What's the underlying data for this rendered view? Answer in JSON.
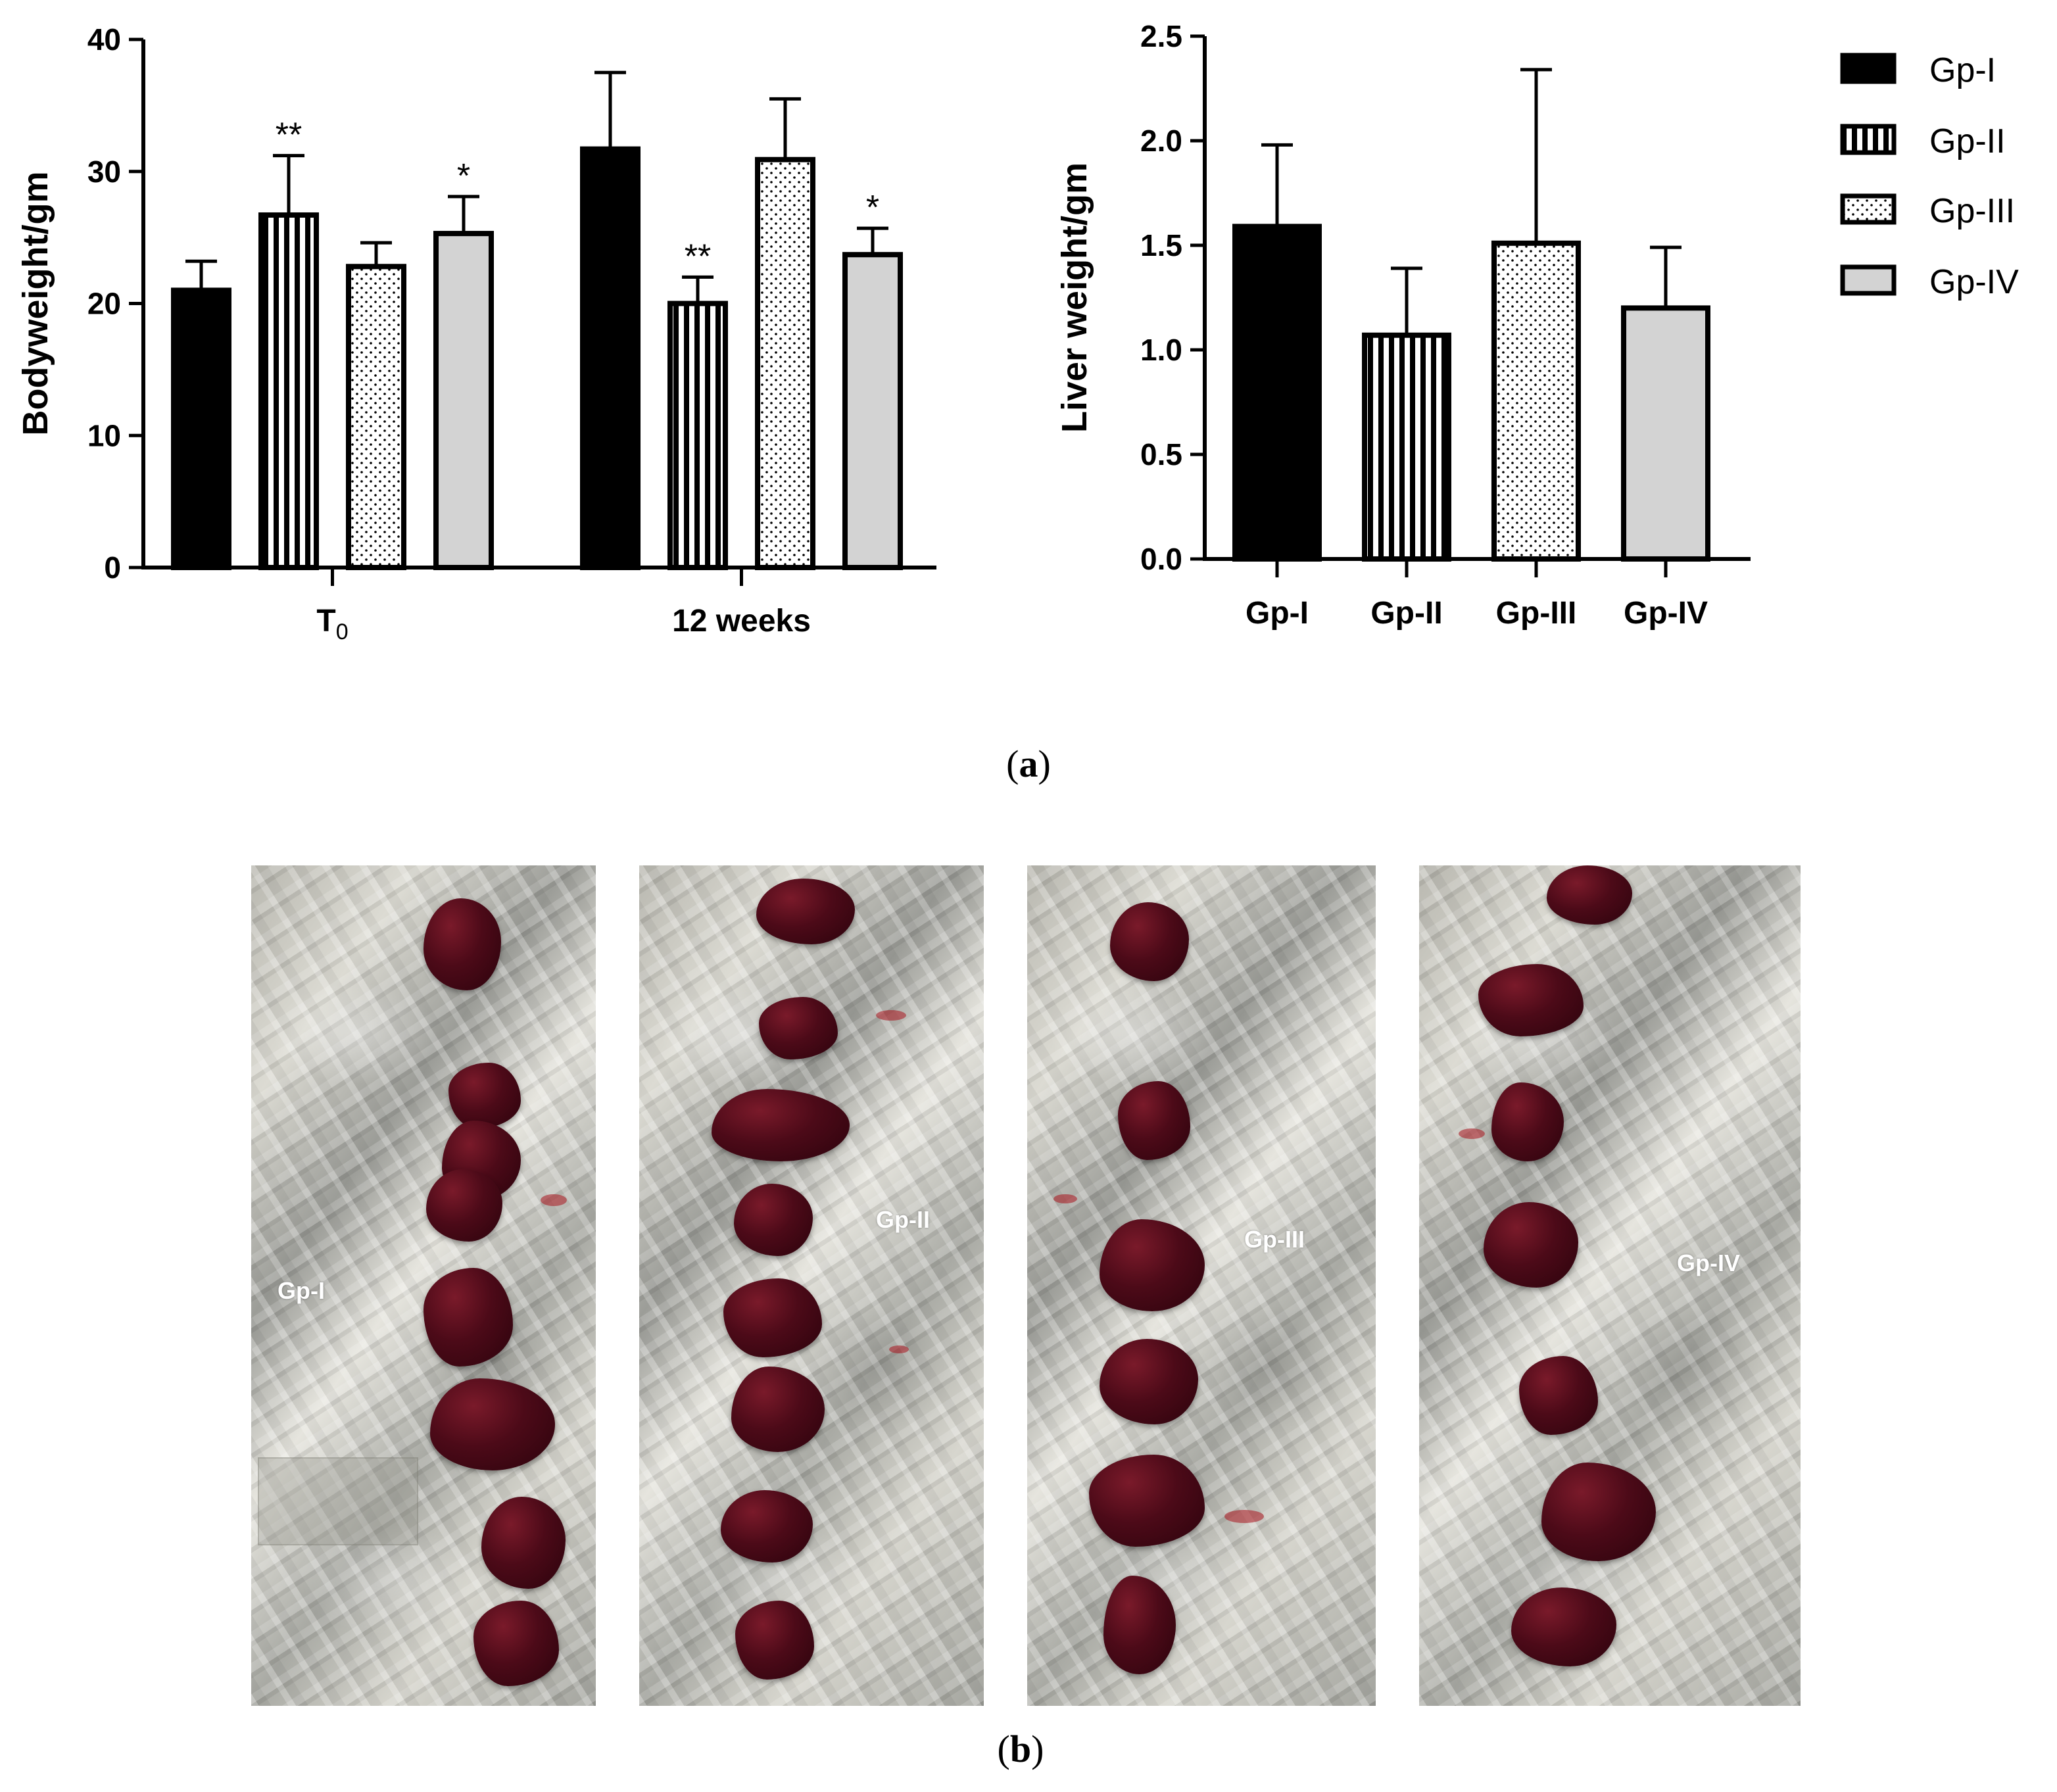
{
  "chart_data": [
    {
      "type": "bar",
      "ylabel": "Bodyweight/gm",
      "ylim": [
        0,
        40
      ],
      "yticks": [
        0,
        10,
        20,
        30,
        40
      ],
      "categories": [
        "T",
        "12 weeks"
      ],
      "category_subscripts": [
        "0",
        ""
      ],
      "series": [
        {
          "name": "Gp-I",
          "values": [
            21.0,
            31.7
          ],
          "errors": [
            2.2,
            5.8
          ],
          "marks": [
            "",
            ""
          ]
        },
        {
          "name": "Gp-II",
          "values": [
            26.7,
            20.0
          ],
          "errors": [
            4.5,
            2.0
          ],
          "marks": [
            "**",
            "**"
          ]
        },
        {
          "name": "Gp-III",
          "values": [
            22.8,
            30.9
          ],
          "errors": [
            1.8,
            4.6
          ],
          "marks": [
            "",
            ""
          ]
        },
        {
          "name": "Gp-IV",
          "values": [
            25.3,
            23.7
          ],
          "errors": [
            2.8,
            2.0
          ],
          "marks": [
            "*",
            "*"
          ]
        }
      ]
    },
    {
      "type": "bar",
      "ylabel": "Liver weight/gm",
      "ylim": [
        0,
        2.5
      ],
      "yticks": [
        "0.0",
        "0.5",
        "1.0",
        "1.5",
        "2.0",
        "2.5"
      ],
      "categories": [
        "Gp-I",
        "Gp-II",
        "Gp-III",
        "Gp-IV"
      ],
      "values": [
        1.59,
        1.07,
        1.51,
        1.2
      ],
      "errors": [
        0.39,
        0.32,
        0.83,
        0.29
      ]
    }
  ],
  "legend": {
    "position": "top-right",
    "items": [
      "Gp-I",
      "Gp-II",
      "Gp-III",
      "Gp-IV"
    ]
  },
  "sub_labels": {
    "a": "a",
    "b": "b"
  },
  "photos": [
    {
      "label": "Gp-I"
    },
    {
      "label": "Gp-II"
    },
    {
      "label": "Gp-III"
    },
    {
      "label": "Gp-IV"
    }
  ],
  "colors": {
    "gp1": "#000000",
    "gp4": "#d3d3d3",
    "axis": "#000000",
    "bar_stroke": "#000000"
  }
}
